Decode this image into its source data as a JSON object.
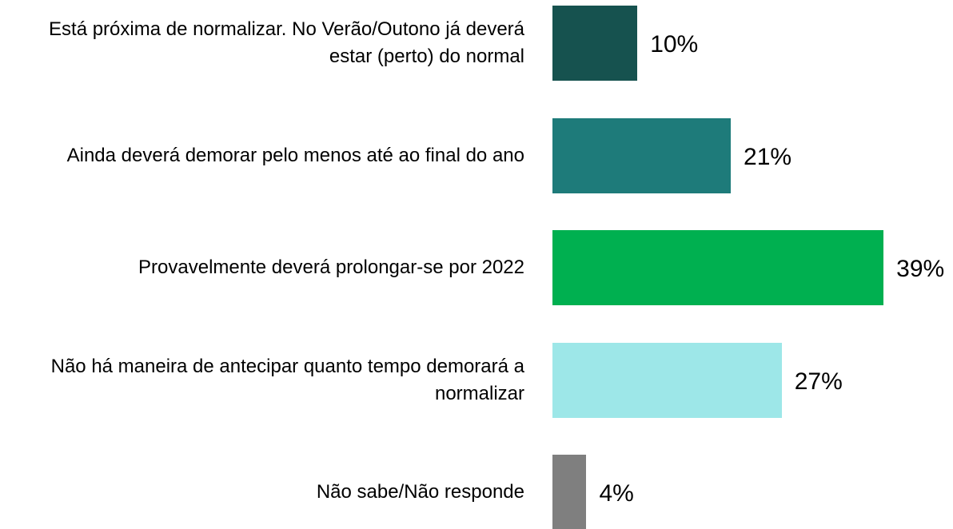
{
  "chart_data": {
    "type": "barh",
    "categories": [
      "Está próxima de normalizar. No Verão/Outono já deverá estar (perto) do normal",
      "Ainda deverá demorar pelo menos até ao final do ano",
      "Provavelmente deverá prolongar-se por 2022",
      "Não há maneira de antecipar quanto tempo demorará a normalizar",
      "Não sabe/Não responde"
    ],
    "values": [
      10,
      21,
      39,
      27,
      4
    ],
    "value_labels": [
      "10%",
      "21%",
      "39%",
      "27%",
      "4%"
    ],
    "colors": [
      "#16524f",
      "#1e7b7a",
      "#00b050",
      "#9de7e8",
      "#7f7f7f"
    ]
  }
}
